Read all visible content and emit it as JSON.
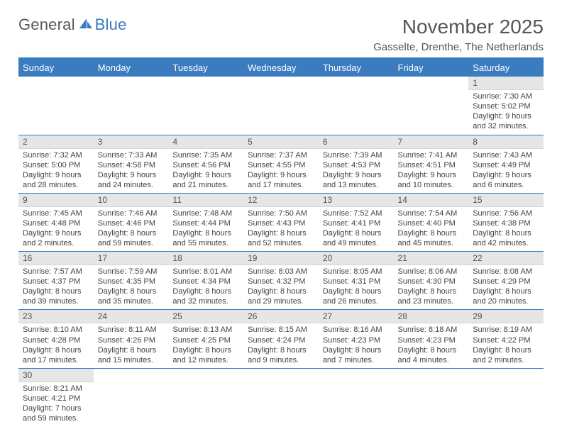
{
  "logo": {
    "text1": "General",
    "text2": "Blue"
  },
  "title": "November 2025",
  "location": "Gasselte, Drenthe, The Netherlands",
  "colors": {
    "accent": "#3b7bbf",
    "day_header_bg": "#e6e6e6",
    "text": "#444444",
    "header_text": "#555555"
  },
  "weekdays": [
    "Sunday",
    "Monday",
    "Tuesday",
    "Wednesday",
    "Thursday",
    "Friday",
    "Saturday"
  ],
  "weeks": [
    [
      null,
      null,
      null,
      null,
      null,
      null,
      {
        "n": "1",
        "sr": "7:30 AM",
        "ss": "5:02 PM",
        "dl": "9 hours and 32 minutes."
      }
    ],
    [
      {
        "n": "2",
        "sr": "7:32 AM",
        "ss": "5:00 PM",
        "dl": "9 hours and 28 minutes."
      },
      {
        "n": "3",
        "sr": "7:33 AM",
        "ss": "4:58 PM",
        "dl": "9 hours and 24 minutes."
      },
      {
        "n": "4",
        "sr": "7:35 AM",
        "ss": "4:56 PM",
        "dl": "9 hours and 21 minutes."
      },
      {
        "n": "5",
        "sr": "7:37 AM",
        "ss": "4:55 PM",
        "dl": "9 hours and 17 minutes."
      },
      {
        "n": "6",
        "sr": "7:39 AM",
        "ss": "4:53 PM",
        "dl": "9 hours and 13 minutes."
      },
      {
        "n": "7",
        "sr": "7:41 AM",
        "ss": "4:51 PM",
        "dl": "9 hours and 10 minutes."
      },
      {
        "n": "8",
        "sr": "7:43 AM",
        "ss": "4:49 PM",
        "dl": "9 hours and 6 minutes."
      }
    ],
    [
      {
        "n": "9",
        "sr": "7:45 AM",
        "ss": "4:48 PM",
        "dl": "9 hours and 2 minutes."
      },
      {
        "n": "10",
        "sr": "7:46 AM",
        "ss": "4:46 PM",
        "dl": "8 hours and 59 minutes."
      },
      {
        "n": "11",
        "sr": "7:48 AM",
        "ss": "4:44 PM",
        "dl": "8 hours and 55 minutes."
      },
      {
        "n": "12",
        "sr": "7:50 AM",
        "ss": "4:43 PM",
        "dl": "8 hours and 52 minutes."
      },
      {
        "n": "13",
        "sr": "7:52 AM",
        "ss": "4:41 PM",
        "dl": "8 hours and 49 minutes."
      },
      {
        "n": "14",
        "sr": "7:54 AM",
        "ss": "4:40 PM",
        "dl": "8 hours and 45 minutes."
      },
      {
        "n": "15",
        "sr": "7:56 AM",
        "ss": "4:38 PM",
        "dl": "8 hours and 42 minutes."
      }
    ],
    [
      {
        "n": "16",
        "sr": "7:57 AM",
        "ss": "4:37 PM",
        "dl": "8 hours and 39 minutes."
      },
      {
        "n": "17",
        "sr": "7:59 AM",
        "ss": "4:35 PM",
        "dl": "8 hours and 35 minutes."
      },
      {
        "n": "18",
        "sr": "8:01 AM",
        "ss": "4:34 PM",
        "dl": "8 hours and 32 minutes."
      },
      {
        "n": "19",
        "sr": "8:03 AM",
        "ss": "4:32 PM",
        "dl": "8 hours and 29 minutes."
      },
      {
        "n": "20",
        "sr": "8:05 AM",
        "ss": "4:31 PM",
        "dl": "8 hours and 26 minutes."
      },
      {
        "n": "21",
        "sr": "8:06 AM",
        "ss": "4:30 PM",
        "dl": "8 hours and 23 minutes."
      },
      {
        "n": "22",
        "sr": "8:08 AM",
        "ss": "4:29 PM",
        "dl": "8 hours and 20 minutes."
      }
    ],
    [
      {
        "n": "23",
        "sr": "8:10 AM",
        "ss": "4:28 PM",
        "dl": "8 hours and 17 minutes."
      },
      {
        "n": "24",
        "sr": "8:11 AM",
        "ss": "4:26 PM",
        "dl": "8 hours and 15 minutes."
      },
      {
        "n": "25",
        "sr": "8:13 AM",
        "ss": "4:25 PM",
        "dl": "8 hours and 12 minutes."
      },
      {
        "n": "26",
        "sr": "8:15 AM",
        "ss": "4:24 PM",
        "dl": "8 hours and 9 minutes."
      },
      {
        "n": "27",
        "sr": "8:16 AM",
        "ss": "4:23 PM",
        "dl": "8 hours and 7 minutes."
      },
      {
        "n": "28",
        "sr": "8:18 AM",
        "ss": "4:23 PM",
        "dl": "8 hours and 4 minutes."
      },
      {
        "n": "29",
        "sr": "8:19 AM",
        "ss": "4:22 PM",
        "dl": "8 hours and 2 minutes."
      }
    ],
    [
      {
        "n": "30",
        "sr": "8:21 AM",
        "ss": "4:21 PM",
        "dl": "7 hours and 59 minutes."
      },
      null,
      null,
      null,
      null,
      null,
      null
    ]
  ],
  "labels": {
    "sunrise": "Sunrise:",
    "sunset": "Sunset:",
    "daylight": "Daylight:"
  }
}
